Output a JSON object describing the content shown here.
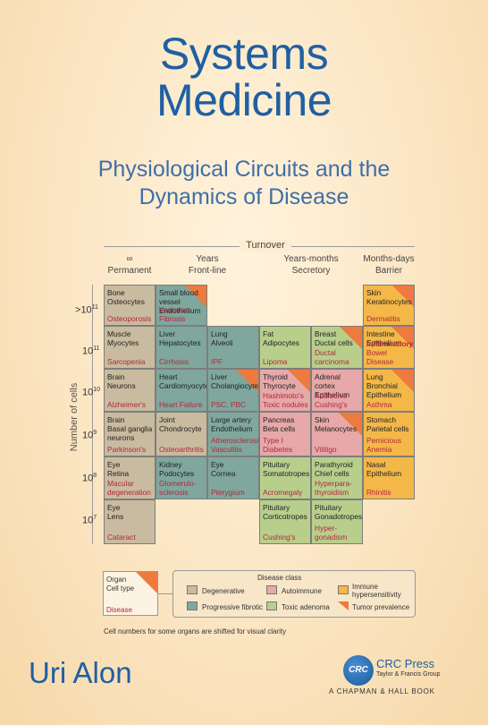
{
  "title": {
    "line1": "Systems",
    "line2": "Medicine"
  },
  "subtitle": {
    "line1": "Physiological Circuits and the",
    "line2": "Dynamics of Disease"
  },
  "figure": {
    "turnover_label": "Turnover",
    "columns": [
      {
        "top": "∞",
        "bottom": "Permanent"
      },
      {
        "top": "Years",
        "bottom": "Front-line"
      },
      {
        "top": "Years-months",
        "bottom": "Secretory"
      },
      {
        "top": "Months-days",
        "bottom": "Barrier"
      }
    ],
    "y_axis_label": "Number of cells",
    "rows": [
      {
        "base": "10",
        "exp": "11",
        "prefix": ">"
      },
      {
        "base": "10",
        "exp": "11",
        "prefix": ""
      },
      {
        "base": "10",
        "exp": "10",
        "prefix": ""
      },
      {
        "base": "10",
        "exp": "9",
        "prefix": ""
      },
      {
        "base": "10",
        "exp": "8",
        "prefix": ""
      },
      {
        "base": "10",
        "exp": "7",
        "prefix": ""
      }
    ],
    "cells": [
      {
        "text": "Bone\nOsteocytes",
        "disease": "Osteoporosis",
        "cls": "deg"
      },
      {
        "text": "Small blood\nvessel\nEndothelium",
        "disease": "Vascular Fibrosis",
        "cls": "fib",
        "tri": true
      },
      {
        "text": "Skin\nKeratinocytes",
        "disease": "Dermatitis",
        "cls": "imm",
        "tri": true
      },
      {
        "text": "Muscle\nMyocytes",
        "disease": "Sarcopenia",
        "cls": "deg"
      },
      {
        "text": "Liver\nHepatocytes",
        "disease": "Cirrhosis",
        "cls": "fib"
      },
      {
        "text": "Lung\nAlveoli",
        "disease": "IPF",
        "cls": "fib"
      },
      {
        "text": "Fat\nAdipocytes",
        "disease": "Lipoma",
        "cls": "tox"
      },
      {
        "text": "Breast\nDuctal cells",
        "disease": "Ductal\ncarcinoma",
        "cls": "tox",
        "tri": true
      },
      {
        "text": "Intestine\nEpithelium",
        "disease": "Inflammatory",
        "disease2": "Bowel Disease",
        "cls": "imm",
        "tri": true
      },
      {
        "text": "Brain\nNeurons",
        "disease": "Alzheimer's",
        "cls": "deg"
      },
      {
        "text": "Heart\nCardiomyocytes",
        "disease": "Heart Failure",
        "cls": "fib"
      },
      {
        "text": "Liver\nCholangiocyte",
        "disease": "PSC, PBC",
        "cls": "fib",
        "tri": true
      },
      {
        "text": "Thyroid\nThyrocyte",
        "disease": "Hashimoto's\nToxic nodules",
        "cls": "aut",
        "tri": true
      },
      {
        "text": "Adrenal cortex\nEpithelium",
        "disease": "Addison's\nCushing's",
        "cls": "aut"
      },
      {
        "text": "Lung\nBronchial\nEpithelium",
        "disease": "Asthma",
        "cls": "imm",
        "tri": true
      },
      {
        "text": "Brain\nBasal ganglia\nneurons",
        "disease": "Parkinson's",
        "cls": "deg"
      },
      {
        "text": "Joint\nChondrocyte",
        "disease": "Osteoarthritis",
        "cls": "deg"
      },
      {
        "text": "Large artery\nEndothelium",
        "disease": "Atherosclerosis\nVasculitis",
        "cls": "fib"
      },
      {
        "text": "Pancreas\nBeta cells",
        "disease": "Type I Diabetes",
        "cls": "aut"
      },
      {
        "text": "Skin\nMelanocytes",
        "disease": "Vitiligo",
        "cls": "aut",
        "tri": true
      },
      {
        "text": "Stomach\nParietal cells",
        "disease": "Pernicious\nAnemia",
        "cls": "imm"
      },
      {
        "text": "Eye\nRetina",
        "disease": "Macular\ndegeneration",
        "cls": "deg"
      },
      {
        "text": "Kidney\nPodocytes",
        "disease": "Glomerulo-\nsclerosis",
        "cls": "fib"
      },
      {
        "text": "Eye\nCornea",
        "disease": "Pterygium",
        "cls": "fib"
      },
      {
        "text": "Pituitary\nSomatotropes",
        "disease": "Acromegaly",
        "cls": "tox"
      },
      {
        "text": "Parathyroid\nChief cells",
        "disease": "Hyperpara-\nthyroidism",
        "cls": "tox"
      },
      {
        "text": "Nasal\nEpithelium",
        "disease": "Rhinitis",
        "cls": "imm"
      },
      {
        "text": "Eye\nLens",
        "disease": "Cataract",
        "cls": "deg"
      },
      {
        "text": "Pituitary\nCorticotropes",
        "disease": "Cushing's",
        "cls": "tox"
      },
      {
        "text": "Pituitary\nGonadotropes",
        "disease": "Hyper-\ngonadism",
        "cls": "tox"
      }
    ],
    "key": {
      "organ": "Organ",
      "cell_type": "Cell type",
      "disease": "Disease"
    },
    "legend": {
      "title": "Disease class",
      "items": [
        {
          "label": "Degenerative",
          "color": "#c9bb9f"
        },
        {
          "label": "Autoimmune",
          "color": "#e6a8a8"
        },
        {
          "label": "Immune\nhypersensitivity",
          "color": "#f4b848"
        },
        {
          "label": "Progressive fibrotic",
          "color": "#7fa79d"
        },
        {
          "label": "Toxic adenoma",
          "color": "#b8cf8c"
        },
        {
          "label": "Tumor prevalence",
          "color": "#ee7a3f"
        }
      ]
    },
    "footnote": "Cell numbers for some organs are shifted for visual clarity"
  },
  "author": "Uri Alon",
  "publisher": {
    "logo_text": "CRC",
    "name": "CRC Press",
    "group": "Taylor & Francis Group",
    "imprint": "A CHAPMAN & HALL BOOK"
  }
}
